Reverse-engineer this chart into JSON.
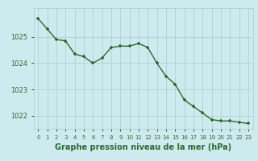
{
  "x": [
    0,
    1,
    2,
    3,
    4,
    5,
    6,
    7,
    8,
    9,
    10,
    11,
    12,
    13,
    14,
    15,
    16,
    17,
    18,
    19,
    20,
    21,
    22,
    23
  ],
  "y": [
    1025.7,
    1025.3,
    1024.9,
    1024.85,
    1024.35,
    1024.25,
    1024.0,
    1024.2,
    1024.6,
    1024.65,
    1024.65,
    1024.75,
    1024.6,
    1024.0,
    1023.5,
    1023.2,
    1022.6,
    1022.35,
    1022.1,
    1021.85,
    1021.8,
    1021.8,
    1021.75,
    1021.7
  ],
  "line_color": "#2d6a2d",
  "marker_color": "#2d6a2d",
  "bg_color": "#cdeaee",
  "grid_color": "#aacccc",
  "xlabel": "Graphe pression niveau de la mer (hPa)",
  "xlabel_color": "#2d6a2d",
  "tick_color": "#2d6a2d",
  "ylim_min": 1021.5,
  "ylim_max": 1026.1,
  "ytick_values": [
    1022,
    1023,
    1024,
    1025
  ],
  "xtick_labels": [
    "0",
    "1",
    "2",
    "3",
    "4",
    "5",
    "6",
    "7",
    "8",
    "9",
    "10",
    "11",
    "12",
    "13",
    "14",
    "15",
    "16",
    "17",
    "18",
    "19",
    "20",
    "21",
    "22",
    "23"
  ],
  "tick_fontsize": 6,
  "xlabel_fontsize": 7,
  "marker_size": 3.5,
  "line_width": 1.0
}
